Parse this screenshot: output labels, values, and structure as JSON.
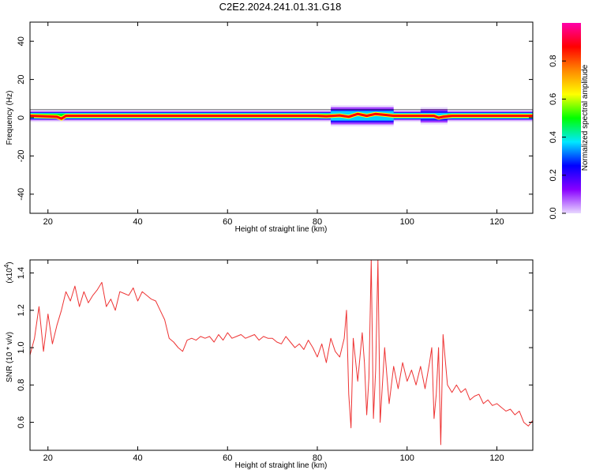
{
  "page": {
    "title": "C2E2.2024.241.01.31.G18"
  },
  "chart_data": [
    {
      "type": "heatmap",
      "title": "C2E2.2024.241.01.31.G18",
      "xlabel": "Height of straight line (km)",
      "ylabel": "Frequency (Hz)",
      "xlim": [
        16,
        128
      ],
      "ylim": [
        -50,
        50
      ],
      "x_ticks": [
        20,
        40,
        60,
        80,
        100,
        120
      ],
      "y_ticks": [
        -40,
        -20,
        0,
        20,
        40
      ],
      "x_tick_labels": [
        "20",
        "40",
        "60",
        "80",
        "100",
        "120"
      ],
      "y_tick_labels": [
        "-40",
        "-20",
        "0",
        "20",
        "40"
      ],
      "band_center_hz": 1,
      "core_points": [
        {
          "x": 16,
          "y": 1
        },
        {
          "x": 22,
          "y": 0.5
        },
        {
          "x": 23,
          "y": -0.5
        },
        {
          "x": 24,
          "y": 1
        },
        {
          "x": 40,
          "y": 1
        },
        {
          "x": 56,
          "y": 1
        },
        {
          "x": 80,
          "y": 1
        },
        {
          "x": 82,
          "y": 0.8
        },
        {
          "x": 85,
          "y": 1.2
        },
        {
          "x": 87,
          "y": 0.5
        },
        {
          "x": 89,
          "y": 2
        },
        {
          "x": 91,
          "y": 1
        },
        {
          "x": 93,
          "y": 2
        },
        {
          "x": 95,
          "y": 1.5
        },
        {
          "x": 97,
          "y": 1
        },
        {
          "x": 106,
          "y": 1
        },
        {
          "x": 107,
          "y": 0
        },
        {
          "x": 108,
          "y": 0.5
        },
        {
          "x": 110,
          "y": 1
        },
        {
          "x": 128,
          "y": 1
        }
      ],
      "wide_segments": [
        {
          "x0": 83,
          "x1": 97,
          "half_width_hz": 4.5
        },
        {
          "x0": 103,
          "x1": 109,
          "half_width_hz": 3.5
        }
      ],
      "colorbar": {
        "label": "Normalized spectral amplitude",
        "range": [
          0.0,
          1.0
        ],
        "ticks": [
          0.0,
          0.2,
          0.4,
          0.6,
          0.8
        ],
        "tick_labels": [
          "0.0",
          "0.2",
          "0.4",
          "0.6",
          "0.8"
        ],
        "colors": [
          "#e8d8ff",
          "#8800ff",
          "#0000ff",
          "#00e8ff",
          "#00ff00",
          "#ffff00",
          "#ff8800",
          "#ff0000",
          "#ff00aa"
        ]
      }
    },
    {
      "type": "line",
      "xlabel": "Height of straight line (km)",
      "ylabel": "SNR (10 * v/v)",
      "multiplier": "(x10",
      "multiplier_exp": "4",
      "multiplier_close": ")",
      "xlim": [
        16,
        128
      ],
      "ylim": [
        0.45,
        1.47
      ],
      "x_ticks": [
        20,
        40,
        60,
        80,
        100,
        120
      ],
      "y_ticks": [
        0.6,
        0.8,
        1.0,
        1.2,
        1.4
      ],
      "x_tick_labels": [
        "20",
        "40",
        "60",
        "80",
        "100",
        "120"
      ],
      "y_tick_labels": [
        "0.6",
        "0.8",
        "1.0",
        "1.2",
        "1.4"
      ],
      "line_color": "#ee3333",
      "x": [
        16,
        17,
        18,
        19,
        20,
        21,
        22,
        23,
        24,
        25,
        26,
        27,
        28,
        29,
        30,
        31,
        32,
        33,
        34,
        35,
        36,
        37,
        38,
        39,
        40,
        41,
        42,
        43,
        44,
        45,
        46,
        47,
        48,
        49,
        50,
        51,
        52,
        53,
        54,
        55,
        56,
        57,
        58,
        59,
        60,
        61,
        62,
        63,
        64,
        65,
        66,
        67,
        68,
        69,
        70,
        71,
        72,
        73,
        74,
        75,
        76,
        77,
        78,
        79,
        80,
        81,
        82,
        83,
        84,
        85,
        86,
        86.5,
        87,
        87.5,
        88,
        89,
        90,
        90.5,
        91,
        91.5,
        92,
        92.5,
        93,
        93.5,
        94,
        95,
        96,
        97,
        98,
        99,
        100,
        101,
        102,
        103,
        104,
        105,
        105.5,
        106,
        106.5,
        107,
        107.5,
        108,
        109,
        110,
        111,
        112,
        113,
        114,
        115,
        116,
        117,
        118,
        119,
        120,
        121,
        122,
        123,
        124,
        125,
        126,
        127,
        128
      ],
      "y": [
        0.96,
        1.05,
        1.22,
        0.98,
        1.18,
        1.02,
        1.12,
        1.2,
        1.3,
        1.25,
        1.33,
        1.22,
        1.3,
        1.24,
        1.28,
        1.31,
        1.35,
        1.22,
        1.26,
        1.2,
        1.3,
        1.29,
        1.28,
        1.32,
        1.25,
        1.3,
        1.28,
        1.26,
        1.25,
        1.2,
        1.15,
        1.05,
        1.03,
        1.0,
        0.98,
        1.04,
        1.05,
        1.04,
        1.06,
        1.05,
        1.06,
        1.03,
        1.07,
        1.04,
        1.08,
        1.05,
        1.06,
        1.07,
        1.05,
        1.06,
        1.07,
        1.04,
        1.06,
        1.05,
        1.05,
        1.03,
        1.02,
        1.06,
        1.03,
        1.0,
        1.02,
        0.99,
        1.04,
        1.0,
        0.95,
        1.02,
        0.92,
        1.05,
        0.98,
        0.95,
        1.05,
        1.2,
        0.75,
        0.57,
        1.05,
        0.82,
        1.08,
        0.92,
        0.64,
        0.84,
        1.47,
        0.62,
        0.88,
        1.47,
        0.6,
        1.0,
        0.7,
        0.9,
        0.78,
        0.92,
        0.82,
        0.88,
        0.8,
        0.9,
        0.78,
        0.92,
        1.0,
        0.62,
        0.75,
        1.0,
        0.48,
        1.07,
        0.8,
        0.76,
        0.8,
        0.76,
        0.78,
        0.72,
        0.74,
        0.75,
        0.7,
        0.72,
        0.69,
        0.7,
        0.68,
        0.66,
        0.67,
        0.64,
        0.66,
        0.6,
        0.58,
        0.61
      ]
    }
  ]
}
